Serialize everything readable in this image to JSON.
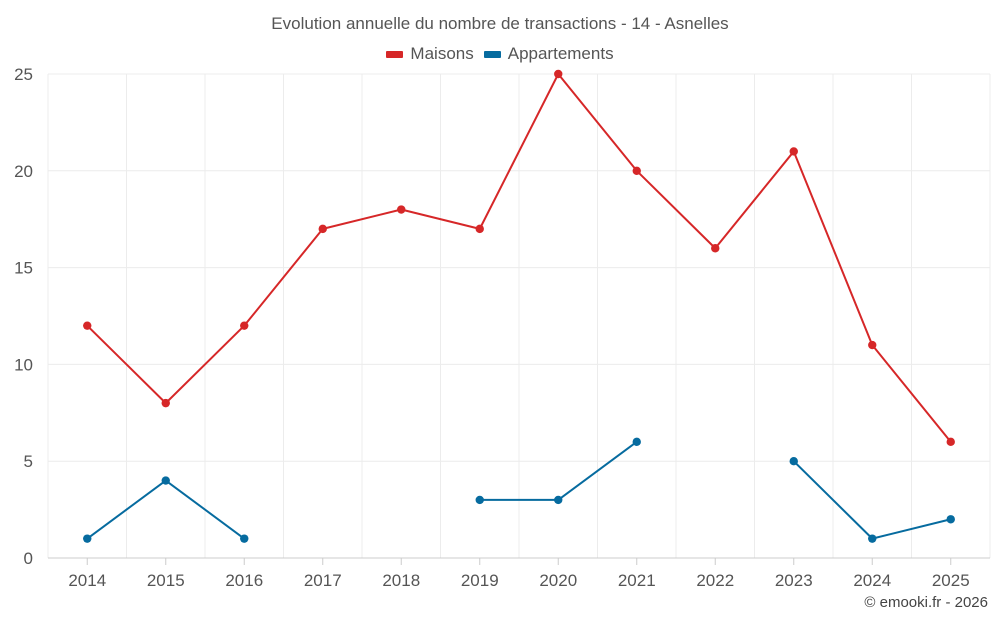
{
  "chart_data": {
    "type": "line",
    "title": "Evolution annuelle du nombre de transactions - 14 - Asnelles",
    "categories": [
      "2014",
      "2015",
      "2016",
      "2017",
      "2018",
      "2019",
      "2020",
      "2021",
      "2022",
      "2023",
      "2024",
      "2025"
    ],
    "ylim": [
      0,
      25
    ],
    "yticks": [
      0,
      5,
      10,
      15,
      20,
      25
    ],
    "grid": true,
    "legend_position": "top-center",
    "series": [
      {
        "name": "Maisons",
        "color": "#d62728",
        "values": [
          12,
          8,
          12,
          17,
          18,
          17,
          25,
          20,
          16,
          21,
          11,
          6
        ]
      },
      {
        "name": "Appartements",
        "color": "#066b9f",
        "values": [
          1,
          4,
          1,
          null,
          null,
          3,
          3,
          6,
          null,
          5,
          1,
          2
        ]
      }
    ]
  },
  "credit": "© emooki.fr - 2026"
}
